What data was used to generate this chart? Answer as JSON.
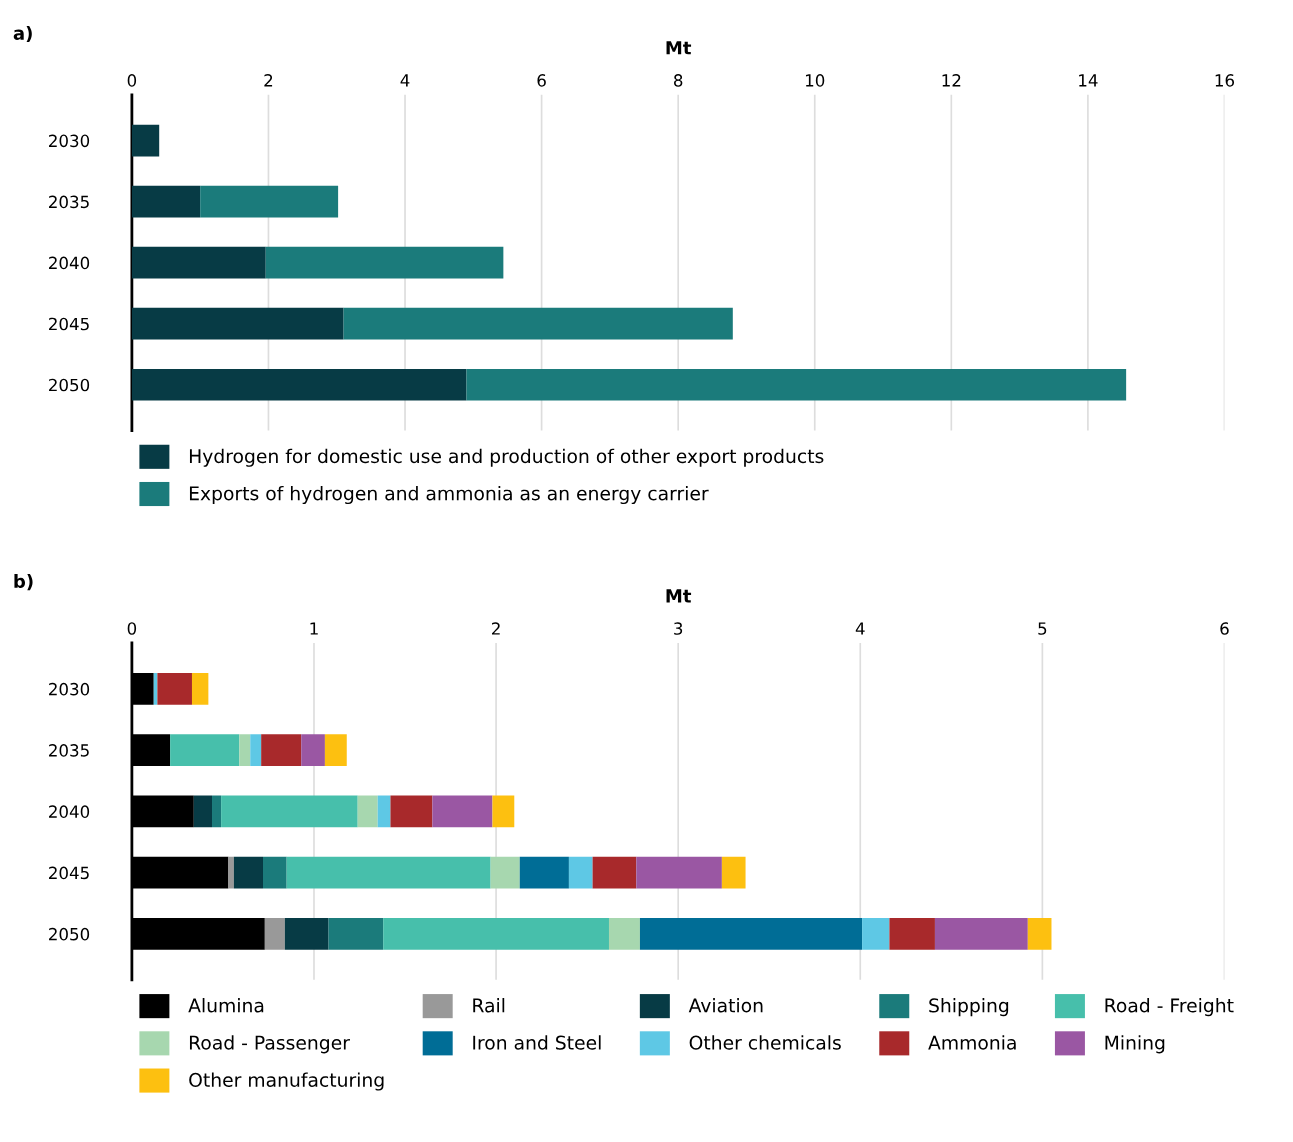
{
  "chart_data": [
    {
      "type": "bar",
      "title": "a)",
      "xlabel": "Mt",
      "orientation": "horizontal",
      "stacked": true,
      "categories": [
        "2030",
        "2035",
        "2040",
        "2045",
        "2050"
      ],
      "xlim": [
        0,
        16
      ],
      "xticks": [
        0,
        2,
        4,
        6,
        8,
        10,
        12,
        14,
        16
      ],
      "grid": "x",
      "legend": "bottom",
      "series": [
        {
          "name": "Hydrogen for domestic use and production of other export products",
          "color": "#073b45",
          "values": [
            0.4,
            1.0,
            1.96,
            3.1,
            4.9
          ]
        },
        {
          "name": "Exports of hydrogen and ammonia as an energy carrier",
          "color": "#1b7b7b",
          "values": [
            null,
            2.02,
            3.48,
            5.7,
            9.66
          ]
        }
      ]
    },
    {
      "type": "bar",
      "title": "b)",
      "xlabel": "Mt",
      "orientation": "horizontal",
      "stacked": true,
      "categories": [
        "2030",
        "2035",
        "2040",
        "2045",
        "2050"
      ],
      "xlim": [
        0,
        6
      ],
      "xticks": [
        0,
        1,
        2,
        3,
        4,
        5,
        6
      ],
      "grid": "x",
      "legend": "bottom",
      "series": [
        {
          "name": "Alumina",
          "color": "#000000",
          "values": [
            0.12,
            0.21,
            0.34,
            0.53,
            0.73
          ]
        },
        {
          "name": "Rail",
          "color": "#999999",
          "values": [
            null,
            null,
            null,
            0.03,
            0.11
          ]
        },
        {
          "name": "Aviation",
          "color": "#073b45",
          "values": [
            null,
            null,
            0.1,
            0.16,
            0.24
          ]
        },
        {
          "name": "Shipping",
          "color": "#1b7b7b",
          "values": [
            null,
            null,
            0.05,
            0.13,
            0.3
          ]
        },
        {
          "name": "Road - Freight",
          "color": "#47bfab",
          "values": [
            null,
            0.38,
            0.75,
            1.12,
            1.24
          ]
        },
        {
          "name": "Road - Passenger",
          "color": "#a7d7af",
          "values": [
            null,
            0.06,
            0.11,
            0.16,
            0.17
          ]
        },
        {
          "name": "Iron and Steel",
          "color": "#006d96",
          "values": [
            null,
            null,
            null,
            0.27,
            1.22
          ]
        },
        {
          "name": "Other chemicals",
          "color": "#5ec8e5",
          "values": [
            0.02,
            0.06,
            0.07,
            0.13,
            0.15
          ]
        },
        {
          "name": "Ammonia",
          "color": "#a8292b",
          "values": [
            0.19,
            0.22,
            0.23,
            0.24,
            0.25
          ]
        },
        {
          "name": "Mining",
          "color": "#9a57a3",
          "values": [
            null,
            0.13,
            0.33,
            0.47,
            0.51
          ]
        },
        {
          "name": "Other manufacturing",
          "color": "#fdc010",
          "values": [
            0.09,
            0.12,
            0.12,
            0.13,
            0.13
          ]
        }
      ]
    }
  ]
}
